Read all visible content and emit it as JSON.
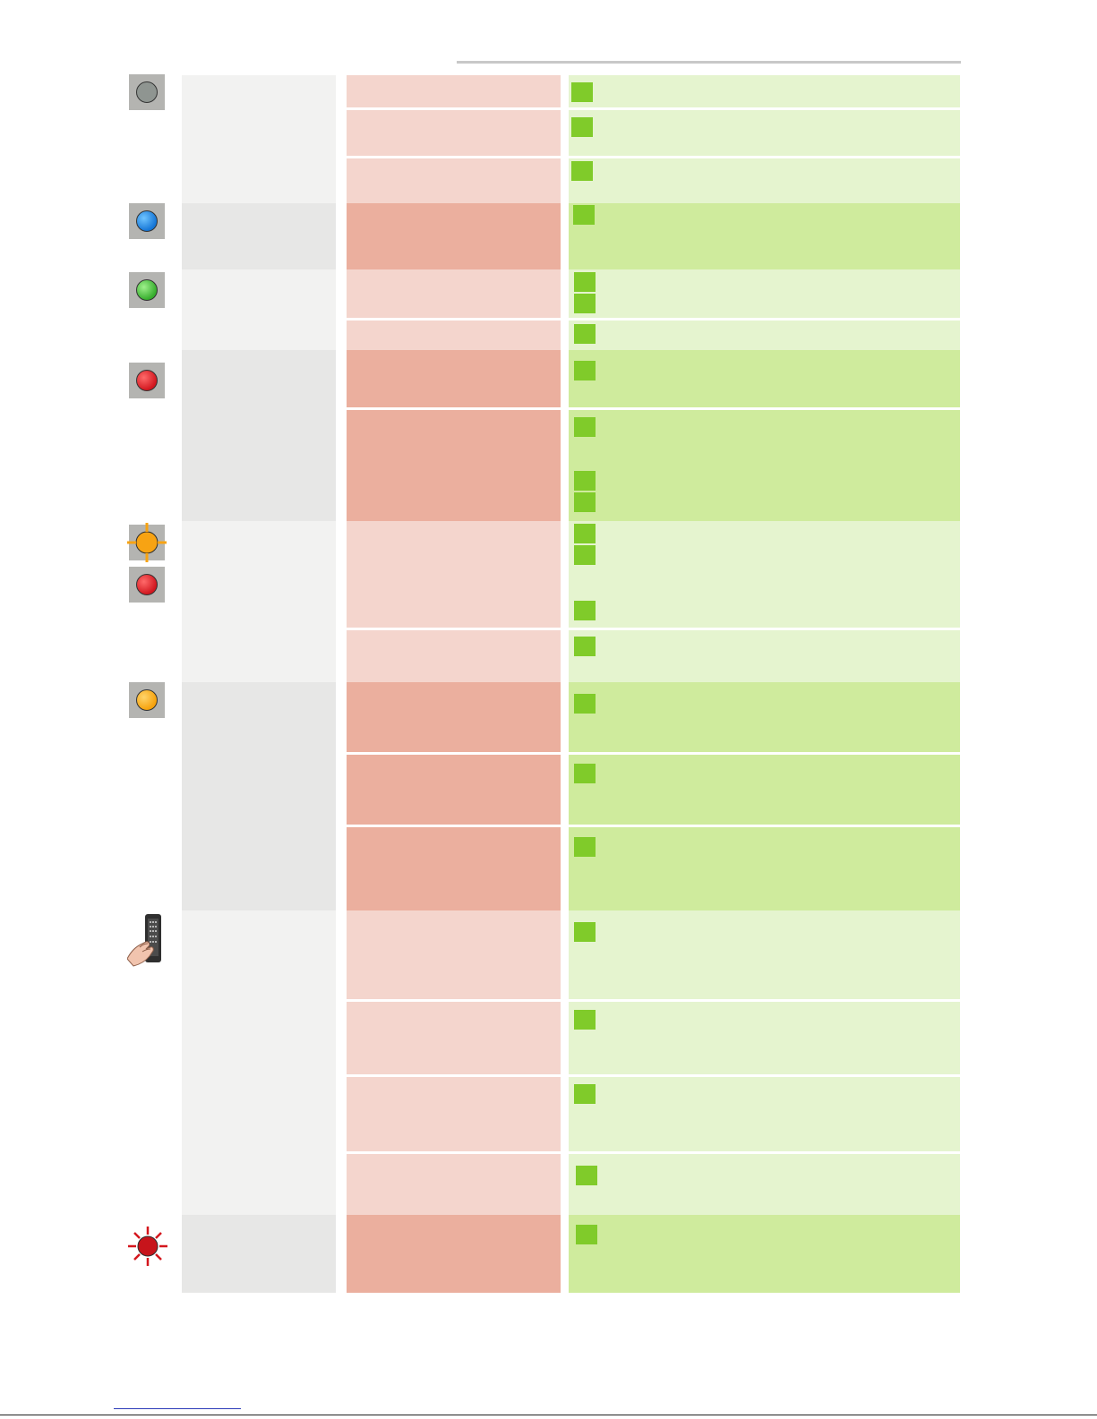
{
  "page": {
    "background": "#ffffff"
  },
  "colors": {
    "state_light": "#f2f2f1",
    "state_dark": "#e7e7e6",
    "cause_light": "#f4d5cd",
    "cause_dark": "#ebaf9e",
    "action_light": "#e5f4cf",
    "action_dark": "#cfeb9d",
    "bullet": "#80cb2a",
    "icon_box": "#b4b4b1",
    "rule": "#c8c8c8"
  },
  "icons": [
    "status-led-gray-icon",
    "status-led-blue-icon",
    "status-led-green-icon",
    "status-led-red-icon",
    "status-led-orange-flashing-icon",
    "status-led-red-icon",
    "status-led-orange-icon",
    "remote-control-icon",
    "status-led-red-flashing-icon"
  ]
}
